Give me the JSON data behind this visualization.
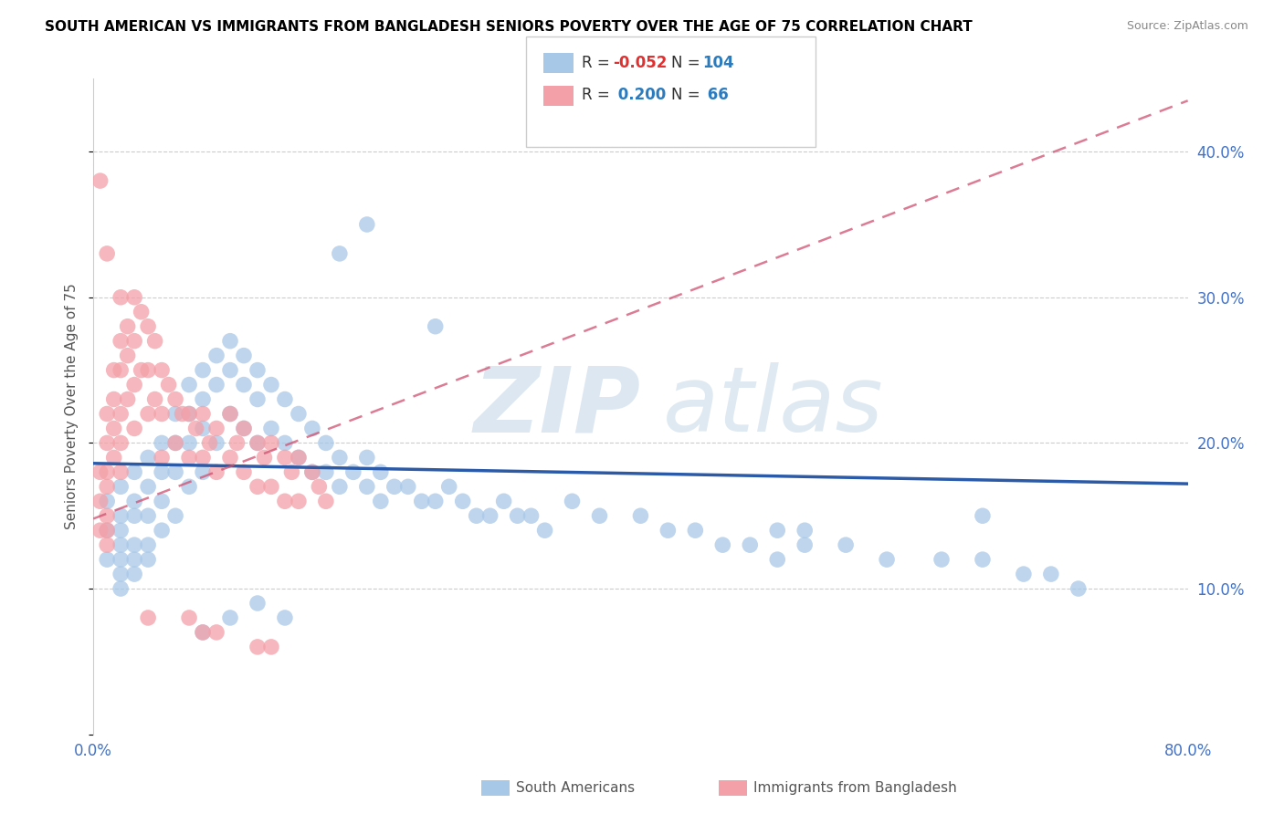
{
  "title": "SOUTH AMERICAN VS IMMIGRANTS FROM BANGLADESH SENIORS POVERTY OVER THE AGE OF 75 CORRELATION CHART",
  "source": "Source: ZipAtlas.com",
  "ylabel": "Seniors Poverty Over the Age of 75",
  "xlim": [
    0.0,
    0.8
  ],
  "ylim": [
    0.0,
    0.45
  ],
  "xticks": [
    0.0,
    0.1,
    0.2,
    0.3,
    0.4,
    0.5,
    0.6,
    0.7,
    0.8
  ],
  "yticks": [
    0.0,
    0.1,
    0.2,
    0.3,
    0.4
  ],
  "blue_R": "-0.052",
  "blue_N": "104",
  "pink_R": "0.200",
  "pink_N": "66",
  "blue_color": "#a8c8e8",
  "pink_color": "#f4a0a8",
  "blue_line_color": "#2b5ba8",
  "pink_line_color": "#d05070",
  "legend_label_blue": "South Americans",
  "legend_label_pink": "Immigrants from Bangladesh",
  "blue_line_x0": 0.0,
  "blue_line_y0": 0.186,
  "blue_line_x1": 0.8,
  "blue_line_y1": 0.172,
  "pink_line_x0": 0.0,
  "pink_line_y0": 0.148,
  "pink_line_x1": 0.8,
  "pink_line_y1": 0.435,
  "blue_scatter_x": [
    0.01,
    0.01,
    0.01,
    0.02,
    0.02,
    0.02,
    0.02,
    0.02,
    0.02,
    0.02,
    0.03,
    0.03,
    0.03,
    0.03,
    0.03,
    0.03,
    0.04,
    0.04,
    0.04,
    0.04,
    0.04,
    0.05,
    0.05,
    0.05,
    0.05,
    0.06,
    0.06,
    0.06,
    0.06,
    0.07,
    0.07,
    0.07,
    0.07,
    0.08,
    0.08,
    0.08,
    0.08,
    0.09,
    0.09,
    0.09,
    0.1,
    0.1,
    0.1,
    0.11,
    0.11,
    0.11,
    0.12,
    0.12,
    0.12,
    0.13,
    0.13,
    0.14,
    0.14,
    0.15,
    0.15,
    0.16,
    0.16,
    0.17,
    0.17,
    0.18,
    0.18,
    0.19,
    0.2,
    0.2,
    0.21,
    0.21,
    0.22,
    0.23,
    0.24,
    0.25,
    0.26,
    0.27,
    0.28,
    0.29,
    0.3,
    0.31,
    0.32,
    0.33,
    0.35,
    0.37,
    0.4,
    0.42,
    0.44,
    0.46,
    0.48,
    0.5,
    0.52,
    0.55,
    0.58,
    0.62,
    0.65,
    0.68,
    0.7,
    0.72,
    0.65,
    0.5,
    0.52,
    0.2,
    0.18,
    0.25,
    0.1,
    0.08,
    0.12,
    0.14
  ],
  "blue_scatter_y": [
    0.16,
    0.14,
    0.12,
    0.17,
    0.15,
    0.13,
    0.14,
    0.12,
    0.11,
    0.1,
    0.18,
    0.16,
    0.15,
    0.13,
    0.12,
    0.11,
    0.19,
    0.17,
    0.15,
    0.13,
    0.12,
    0.2,
    0.18,
    0.16,
    0.14,
    0.22,
    0.2,
    0.18,
    0.15,
    0.24,
    0.22,
    0.2,
    0.17,
    0.25,
    0.23,
    0.21,
    0.18,
    0.26,
    0.24,
    0.2,
    0.27,
    0.25,
    0.22,
    0.26,
    0.24,
    0.21,
    0.25,
    0.23,
    0.2,
    0.24,
    0.21,
    0.23,
    0.2,
    0.22,
    0.19,
    0.21,
    0.18,
    0.2,
    0.18,
    0.19,
    0.17,
    0.18,
    0.19,
    0.17,
    0.18,
    0.16,
    0.17,
    0.17,
    0.16,
    0.16,
    0.17,
    0.16,
    0.15,
    0.15,
    0.16,
    0.15,
    0.15,
    0.14,
    0.16,
    0.15,
    0.15,
    0.14,
    0.14,
    0.13,
    0.13,
    0.14,
    0.13,
    0.13,
    0.12,
    0.12,
    0.12,
    0.11,
    0.11,
    0.1,
    0.15,
    0.12,
    0.14,
    0.35,
    0.33,
    0.28,
    0.08,
    0.07,
    0.09,
    0.08
  ],
  "pink_scatter_x": [
    0.005,
    0.005,
    0.005,
    0.01,
    0.01,
    0.01,
    0.01,
    0.01,
    0.01,
    0.01,
    0.015,
    0.015,
    0.015,
    0.015,
    0.02,
    0.02,
    0.02,
    0.02,
    0.02,
    0.025,
    0.025,
    0.025,
    0.03,
    0.03,
    0.03,
    0.03,
    0.035,
    0.035,
    0.04,
    0.04,
    0.04,
    0.045,
    0.045,
    0.05,
    0.05,
    0.05,
    0.055,
    0.06,
    0.06,
    0.065,
    0.07,
    0.07,
    0.075,
    0.08,
    0.08,
    0.085,
    0.09,
    0.09,
    0.1,
    0.1,
    0.105,
    0.11,
    0.11,
    0.12,
    0.12,
    0.125,
    0.13,
    0.13,
    0.14,
    0.14,
    0.145,
    0.15,
    0.15,
    0.16,
    0.165,
    0.17
  ],
  "pink_scatter_y": [
    0.18,
    0.16,
    0.14,
    0.22,
    0.2,
    0.18,
    0.17,
    0.15,
    0.14,
    0.13,
    0.25,
    0.23,
    0.21,
    0.19,
    0.27,
    0.25,
    0.22,
    0.2,
    0.18,
    0.28,
    0.26,
    0.23,
    0.3,
    0.27,
    0.24,
    0.21,
    0.29,
    0.25,
    0.28,
    0.25,
    0.22,
    0.27,
    0.23,
    0.25,
    0.22,
    0.19,
    0.24,
    0.23,
    0.2,
    0.22,
    0.22,
    0.19,
    0.21,
    0.22,
    0.19,
    0.2,
    0.21,
    0.18,
    0.22,
    0.19,
    0.2,
    0.21,
    0.18,
    0.2,
    0.17,
    0.19,
    0.2,
    0.17,
    0.19,
    0.16,
    0.18,
    0.19,
    0.16,
    0.18,
    0.17,
    0.16
  ],
  "pink_outlier_x": [
    0.005,
    0.01,
    0.02,
    0.04,
    0.07,
    0.08,
    0.09,
    0.12,
    0.13
  ],
  "pink_outlier_y": [
    0.38,
    0.33,
    0.3,
    0.08,
    0.08,
    0.07,
    0.07,
    0.06,
    0.06
  ]
}
